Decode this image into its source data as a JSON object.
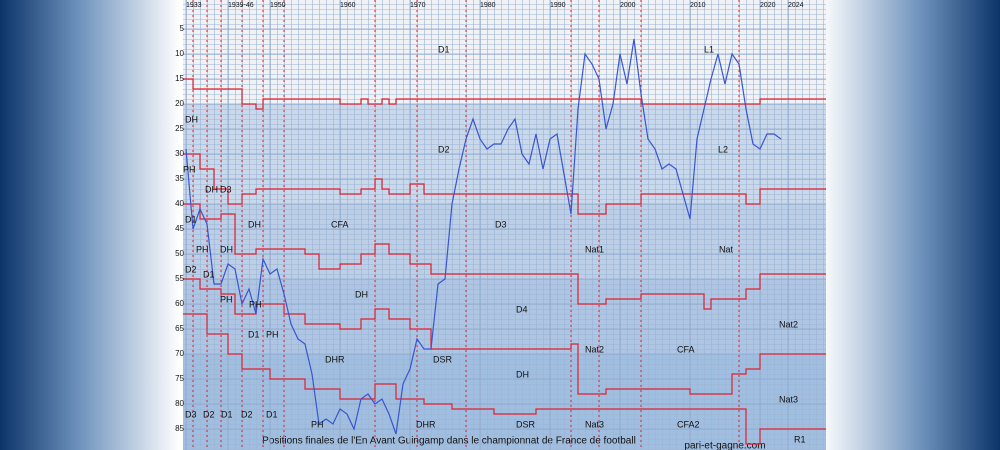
{
  "chart_data": {
    "type": "line",
    "title": "Positions finales de l'En Avant Guingamp dans le championnat de France de football",
    "source": "pari-et-gagne.com",
    "xticks": [
      1933,
      {
        "value": 1939,
        "label": "1939-46"
      },
      1950,
      1960,
      1970,
      1980,
      1990,
      2000,
      2010,
      2020,
      2024
    ],
    "ylim": [
      0,
      89
    ],
    "yticks": [
      5,
      10,
      15,
      20,
      25,
      30,
      35,
      40,
      45,
      50,
      55,
      60,
      65,
      70,
      75,
      80,
      85
    ],
    "x": [
      1933,
      1934,
      1935,
      1936,
      1937,
      1938,
      1939,
      1945,
      1946,
      1947,
      1948,
      1949,
      1950,
      1951,
      1952,
      1953,
      1954,
      1955,
      1956,
      1957,
      1958,
      1959,
      1960,
      1961,
      1962,
      1963,
      1964,
      1965,
      1966,
      1967,
      1968,
      1969,
      1970,
      1971,
      1972,
      1973,
      1974,
      1975,
      1976,
      1977,
      1978,
      1979,
      1980,
      1981,
      1982,
      1983,
      1984,
      1985,
      1986,
      1987,
      1988,
      1989,
      1990,
      1991,
      1992,
      1993,
      1994,
      1995,
      1996,
      1997,
      1998,
      1999,
      2000,
      2001,
      2002,
      2003,
      2004,
      2005,
      2006,
      2007,
      2008,
      2009,
      2010,
      2011,
      2012,
      2013,
      2014,
      2015,
      2016,
      2017,
      2018,
      2019,
      2020,
      2021,
      2022,
      2023
    ],
    "series": [
      {
        "color": "#3a55d0",
        "values": [
          29,
          45,
          41,
          44,
          56,
          56,
          52,
          53,
          60,
          57,
          62,
          51,
          54,
          53,
          58,
          64,
          67,
          68,
          74,
          84,
          83,
          84,
          81,
          82,
          85,
          79,
          78,
          80,
          79,
          82,
          86,
          76,
          73,
          67,
          69,
          69,
          56,
          55,
          40,
          33,
          27,
          23,
          27,
          29,
          28,
          28,
          25,
          23,
          30,
          32,
          26,
          33,
          27,
          26,
          34,
          42,
          21,
          10,
          12,
          15,
          25,
          20,
          10,
          16,
          7,
          18,
          27,
          29,
          33,
          32,
          33,
          38,
          43,
          27,
          21,
          15,
          10,
          16,
          10,
          12,
          21,
          28,
          29,
          26,
          26,
          27
        ]
      }
    ],
    "boundaries": [
      {
        "color": "#dd2233",
        "x": [
          1933,
          1934,
          1946,
          1948,
          1949,
          1960,
          1963,
          1964,
          1966,
          1967,
          1968,
          1993,
          2003,
          2020
        ],
        "values": [
          15,
          17,
          20,
          21,
          19,
          20,
          19,
          20,
          19,
          20,
          19,
          19,
          20,
          19
        ]
      },
      {
        "color": "#dd2233",
        "x": [
          1933,
          1935,
          1937,
          1939,
          1946,
          1948,
          1960,
          1963,
          1965,
          1966,
          1967,
          1970,
          1972,
          1993,
          1994,
          1998,
          2003,
          2018,
          2020
        ],
        "values": [
          30,
          33,
          37,
          40,
          38,
          37,
          38,
          37,
          35,
          37,
          38,
          36,
          38,
          38,
          42,
          40,
          38,
          40,
          37
        ]
      },
      {
        "color": "#dd2233",
        "x": [
          1933,
          1935,
          1938,
          1945,
          1948,
          1955,
          1957,
          1960,
          1963,
          1965,
          1967,
          1970,
          1973,
          1993,
          1994,
          1998,
          2003,
          2010,
          2012,
          2013,
          2018,
          2020
        ],
        "values": [
          40,
          43,
          42,
          50,
          49,
          50,
          53,
          52,
          50,
          48,
          50,
          52,
          54,
          54,
          60,
          59,
          58,
          58,
          61,
          59,
          57,
          54
        ]
      },
      {
        "color": "#dd2233",
        "x": [
          1933,
          1935,
          1938,
          1945,
          1948,
          1952,
          1955,
          1960,
          1963,
          1965,
          1967,
          1970,
          1973,
          1993,
          1994,
          1998,
          2010,
          2016,
          2018,
          2020
        ],
        "values": [
          55,
          57,
          58,
          62,
          60,
          62,
          64,
          65,
          63,
          61,
          63,
          65,
          69,
          68,
          78,
          77,
          78,
          74,
          73,
          70
        ]
      },
      {
        "color": "#dd2233",
        "x": [
          1933,
          1936,
          1939,
          1946,
          1950,
          1955,
          1960,
          1965,
          1968,
          1972,
          1976,
          1982,
          1988,
          2018,
          2020
        ],
        "values": [
          62,
          66,
          70,
          73,
          75,
          77,
          79,
          76,
          79,
          80,
          81,
          82,
          81,
          88,
          85
        ]
      }
    ],
    "dividers": [
      1934,
      1936,
      1938,
      1946,
      1949,
      1952,
      1965,
      1971,
      1978,
      1993,
      1997,
      2003,
      2017
    ],
    "division_labels": [
      "D1",
      "L1",
      "D2",
      "L2",
      "CFA",
      "D3",
      "Nat1",
      "Nat",
      "DH",
      "D4",
      "Nat2",
      "DHR",
      "DSR",
      "Nat2",
      "CFA",
      "DH",
      "Nat3",
      "PH",
      "DHR",
      "DSR",
      "Nat3",
      "CFA2",
      "R1",
      "DH",
      "PH",
      "DH",
      "D3",
      "D1",
      "DH",
      "PH",
      "DH",
      "D2",
      "D1",
      "PH",
      "PH",
      "D1",
      "PH",
      "D3",
      "D2",
      "D1",
      "D2",
      "D1"
    ]
  }
}
